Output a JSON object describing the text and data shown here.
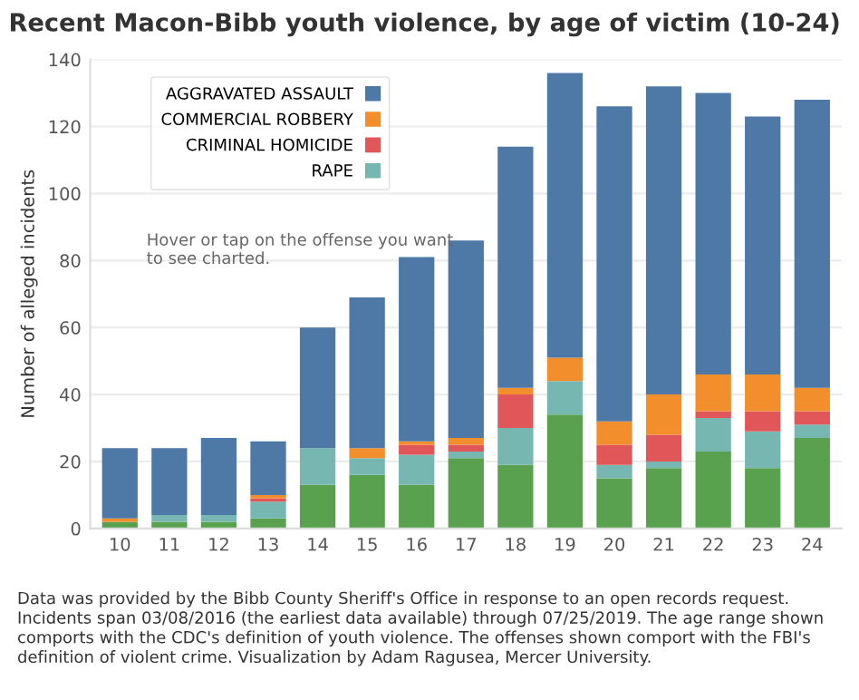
{
  "chart_data": {
    "type": "bar",
    "title": "Recent Macon-Bibb youth violence, by age of victim (10-24)",
    "ylabel": "Number of alleged incidents",
    "categories": [
      "10",
      "11",
      "12",
      "13",
      "14",
      "15",
      "16",
      "17",
      "18",
      "19",
      "20",
      "21",
      "22",
      "23",
      "24"
    ],
    "stacked": true,
    "series": [
      {
        "color": "#59a14f",
        "values": [
          2,
          2,
          2,
          3,
          13,
          16,
          13,
          21,
          19,
          34,
          15,
          18,
          23,
          18,
          27
        ]
      },
      {
        "name": "RAPE",
        "color": "#76b7b2",
        "values": [
          0,
          2,
          2,
          5,
          11,
          5,
          9,
          2,
          11,
          10,
          4,
          2,
          10,
          11,
          4
        ]
      },
      {
        "name": "CRIMINAL HOMICIDE",
        "color": "#e15759",
        "values": [
          0,
          0,
          0,
          1,
          0,
          0,
          3,
          2,
          10,
          0,
          6,
          8,
          2,
          6,
          4
        ]
      },
      {
        "name": "COMMERCIAL ROBBERY",
        "color": "#f28e2b",
        "values": [
          1,
          0,
          0,
          1,
          0,
          3,
          1,
          2,
          2,
          7,
          7,
          12,
          11,
          11,
          7
        ]
      },
      {
        "name": "AGGRAVATED ASSAULT",
        "color": "#4e79a7",
        "values": [
          21,
          20,
          23,
          16,
          36,
          45,
          55,
          59,
          72,
          85,
          94,
          92,
          84,
          77,
          86
        ]
      }
    ],
    "ylim": [
      0,
      140
    ],
    "yticks": [
      0,
      20,
      40,
      60,
      80,
      100,
      120,
      140
    ],
    "grid": "y",
    "legend": "top left",
    "annotations": [
      "Hover or tap on the offense you want to see charted.",
      "Data was provided by the Bibb County Sheriff's Office in response to an open records request. Incidents span 03/08/2016 (the earliest data available) through 07/25/2019. The age range shown comports with the CDC's definition of youth violence. The offenses shown comport with the FBI's definition of violent crime. Visualization by Adam Ragusea, Mercer University."
    ]
  }
}
